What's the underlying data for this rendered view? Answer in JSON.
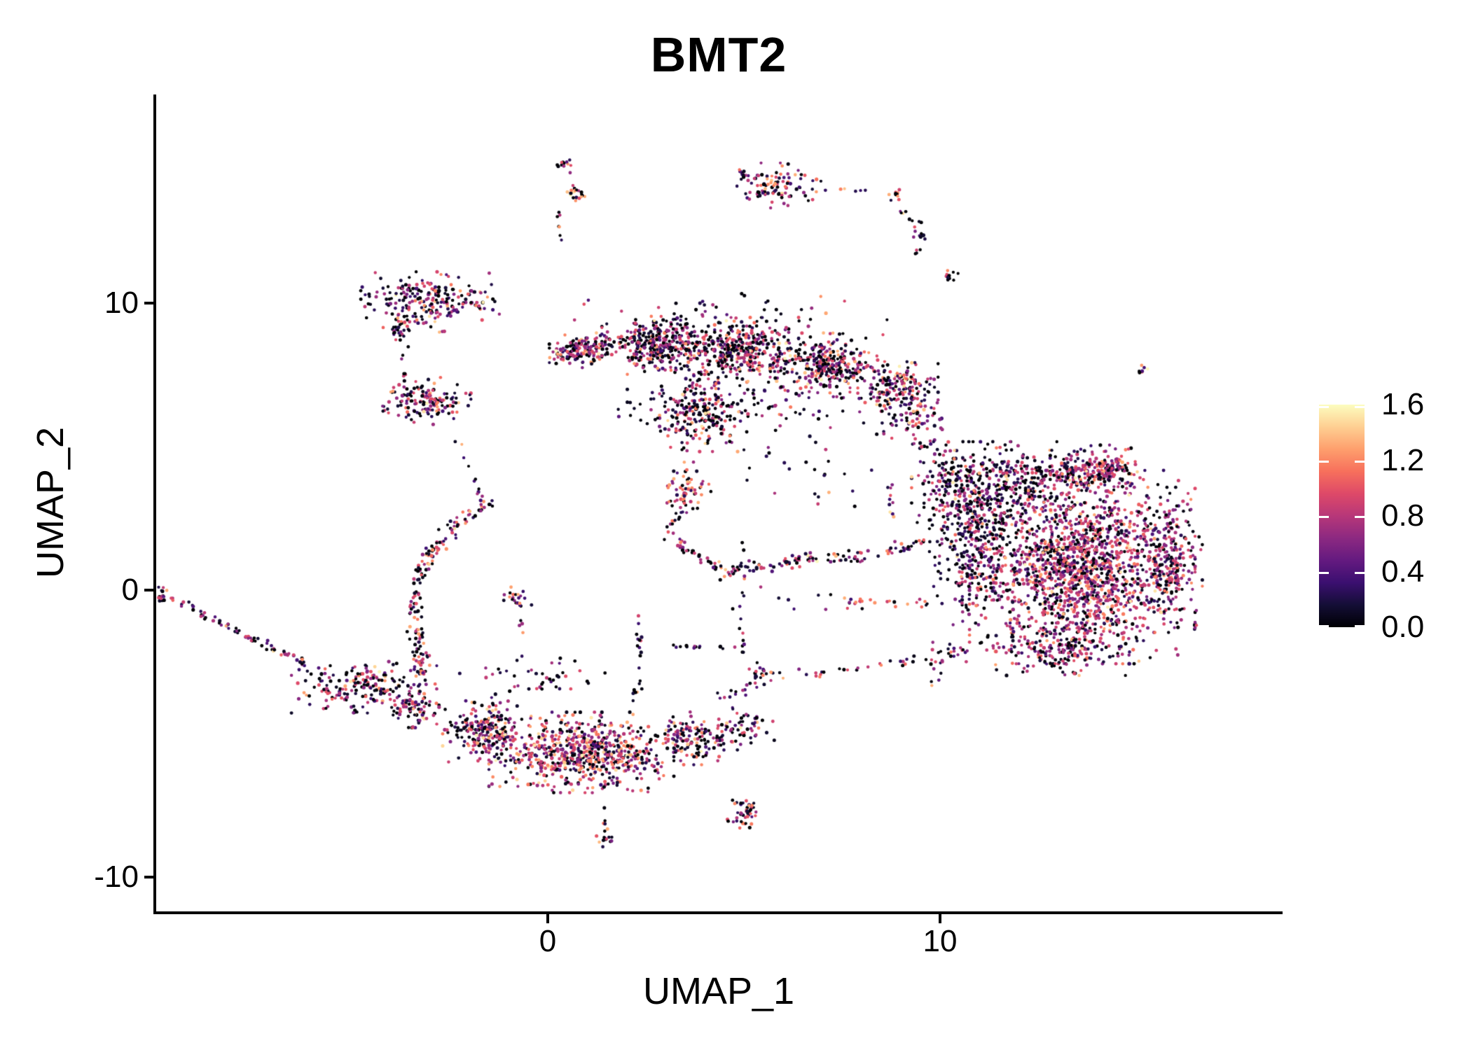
{
  "chart_data": {
    "type": "scatter",
    "title": "BMT2",
    "subtitle": "",
    "grid": false,
    "legend_position": "right",
    "x_axis": {
      "label": "UMAP_1",
      "tick_labels": [
        "0",
        "10"
      ],
      "tick_values": [
        0,
        10
      ],
      "range": [
        -9.98,
        18.7
      ]
    },
    "y_axis": {
      "label": "UMAP_2",
      "tick_labels": [
        "10",
        "0",
        "-10"
      ],
      "tick_values": [
        10,
        0,
        -10
      ],
      "range": [
        -11.2,
        17.22
      ]
    },
    "colorbar": {
      "tick_labels": [
        "1.6",
        "1.2",
        "0.8",
        "0.4",
        "0.0"
      ],
      "tick_values": [
        1.6,
        1.2,
        0.8,
        0.4,
        0.0
      ],
      "range": [
        0,
        1.6
      ],
      "colormap": "magma",
      "stops": [
        "#000004",
        "#140e36",
        "#3b0f70",
        "#641a80",
        "#8c2981",
        "#b73779",
        "#de4968",
        "#f7705c",
        "#fe9f6d",
        "#fecf92",
        "#fcfdbf"
      ]
    },
    "point_style": {
      "radius_px_min": 2.1,
      "radius_px_max": 2.6
    },
    "seed": 42,
    "default_mix": [
      0.54,
      0.32,
      0.11,
      0.03
    ],
    "value_bands": {
      "black": [
        0,
        0.45
      ],
      "purple": [
        0.55,
        1.0
      ],
      "salmon": [
        1.0,
        1.35
      ],
      "pale": [
        1.35,
        1.6
      ]
    },
    "clusters": [
      {
        "id": "chain-blob-1",
        "k": "b",
        "x": 0.45,
        "y": 14.85,
        "rx": 0.2,
        "ry": 0.27,
        "n": 12
      },
      {
        "id": "chain-blob-2",
        "k": "b",
        "x": 0.77,
        "y": 13.8,
        "rx": 0.25,
        "ry": 0.34,
        "n": 20,
        "mix": [
          0.45,
          0.35,
          0.17,
          0.03
        ]
      },
      {
        "id": "chain-pair",
        "k": "b",
        "x": 0.3,
        "y": 13.05,
        "rx": 0.09,
        "ry": 0.12,
        "n": 3
      },
      {
        "id": "chain-trail",
        "k": "s",
        "pts": [
          [
            0.32,
            12.88
          ],
          [
            0.3,
            12.2
          ]
        ],
        "w": 0.08,
        "n": 4
      },
      {
        "id": "top-cluster",
        "k": "b",
        "x": 5.95,
        "y": 14.1,
        "rx": 1.04,
        "ry": 0.68,
        "n": 95,
        "mix": [
          0.5,
          0.33,
          0.14,
          0.03
        ]
      },
      {
        "id": "top-cluster-tip",
        "k": "b",
        "x": 5.0,
        "y": 14.46,
        "rx": 0.21,
        "ry": 0.24,
        "n": 10
      },
      {
        "id": "top-trail",
        "k": "s",
        "pts": [
          [
            7.38,
            13.98
          ],
          [
            8.27,
            13.93
          ]
        ],
        "w": 0.06,
        "n": 5
      },
      {
        "id": "arch-blob-1",
        "k": "b",
        "x": 8.89,
        "y": 13.83,
        "rx": 0.21,
        "ry": 0.29,
        "n": 10,
        "mix": [
          0.45,
          0.3,
          0.2,
          0.05
        ]
      },
      {
        "id": "arch-strand-1",
        "k": "s",
        "pts": [
          [
            8.98,
            13.37
          ],
          [
            9.43,
            12.51
          ]
        ],
        "w": 0.1,
        "n": 7
      },
      {
        "id": "arch-blob-2",
        "k": "b",
        "x": 9.52,
        "y": 12.49,
        "rx": 0.23,
        "ry": 0.32,
        "n": 12,
        "mix": [
          0.45,
          0.3,
          0.2,
          0.05
        ]
      },
      {
        "id": "arch-strand-2",
        "k": "s",
        "pts": [
          [
            9.46,
            11.9
          ],
          [
            9.29,
            11.54
          ]
        ],
        "w": 0.07,
        "n": 4
      },
      {
        "id": "arch-blob-3",
        "k": "b",
        "x": 10.23,
        "y": 10.9,
        "rx": 0.21,
        "ry": 0.29,
        "n": 12
      },
      {
        "id": "tiny-isolate",
        "k": "b",
        "x": 15.2,
        "y": 7.63,
        "rx": 0.16,
        "ry": 0.22,
        "n": 7,
        "mix": [
          0.3,
          0.4,
          0.15,
          0.15
        ]
      },
      {
        "id": "hat",
        "k": "b",
        "x": -2.98,
        "y": 10.02,
        "rx": 1.52,
        "ry": 0.93,
        "n": 230,
        "mix": [
          0.5,
          0.34,
          0.13,
          0.03
        ]
      },
      {
        "id": "hat-fringe",
        "k": "b",
        "x": -3.7,
        "y": 9.1,
        "rx": 0.45,
        "ry": 0.37,
        "n": 25,
        "mix": [
          0.65,
          0.25,
          0.09,
          0.01
        ]
      },
      {
        "id": "hat-halo",
        "k": "b",
        "x": -4.5,
        "y": 10.07,
        "rx": 0.32,
        "ry": 0.61,
        "n": 10,
        "mix": [
          0.7,
          0.25,
          0.05,
          0
        ]
      },
      {
        "id": "hat-trail",
        "k": "s",
        "pts": [
          [
            -3.66,
            8.85
          ],
          [
            -3.66,
            7.39
          ]
        ],
        "w": 0.12,
        "n": 8
      },
      {
        "id": "shoe",
        "k": "b",
        "x": -3.13,
        "y": 6.59,
        "rx": 1.02,
        "ry": 0.71,
        "n": 150,
        "mix": [
          0.5,
          0.34,
          0.14,
          0.02
        ]
      },
      {
        "id": "shoe-connector",
        "k": "s",
        "pts": [
          [
            -2.45,
            5.56
          ],
          [
            -1.64,
            3.12
          ]
        ],
        "w": 0.15,
        "n": 10
      },
      {
        "id": "band-tip",
        "k": "b",
        "x": 0.32,
        "y": 8.17,
        "rx": 0.25,
        "ry": 0.24,
        "n": 18
      },
      {
        "id": "band-1",
        "k": "b",
        "x": 0.86,
        "y": 8.37,
        "rx": 0.71,
        "ry": 0.54,
        "n": 140
      },
      {
        "id": "band-2",
        "k": "b",
        "x": 2.82,
        "y": 8.56,
        "rx": 1.25,
        "ry": 0.85,
        "n": 380
      },
      {
        "id": "band-3",
        "k": "b",
        "x": 4.96,
        "y": 8.37,
        "rx": 1.25,
        "ry": 0.98,
        "n": 380
      },
      {
        "id": "band-4",
        "k": "b",
        "x": 7.11,
        "y": 7.83,
        "rx": 1.25,
        "ry": 0.98,
        "n": 320
      },
      {
        "id": "band-5",
        "k": "b",
        "x": 8.93,
        "y": 7.1,
        "rx": 0.89,
        "ry": 0.85,
        "n": 170
      },
      {
        "id": "band-top-sparse",
        "k": "b",
        "x": 4.79,
        "y": 9.71,
        "rx": 3.57,
        "ry": 0.54,
        "n": 40,
        "mix": [
          0.7,
          0.25,
          0.05,
          0
        ]
      },
      {
        "id": "band-leg",
        "k": "b",
        "x": 3.98,
        "y": 6.17,
        "rx": 0.98,
        "ry": 1.17,
        "n": 210
      },
      {
        "id": "orange-clump",
        "k": "b",
        "x": 3.54,
        "y": 3.56,
        "rx": 0.54,
        "ry": 0.78,
        "n": 65,
        "mix": [
          0.35,
          0.3,
          0.28,
          0.07
        ]
      },
      {
        "id": "band-fringe",
        "k": "b",
        "x": 5.32,
        "y": 6.54,
        "rx": 2.86,
        "ry": 0.85,
        "n": 90,
        "mix": [
          0.68,
          0.25,
          0.06,
          0.01
        ]
      },
      {
        "id": "k-blob",
        "k": "b",
        "x": 9.25,
        "y": 6.12,
        "rx": 0.8,
        "ry": 0.98,
        "n": 70,
        "mix": [
          0.6,
          0.3,
          0.09,
          0.01
        ]
      },
      {
        "id": "bridge",
        "k": "s",
        "pts": [
          [
            9.61,
            5.2
          ],
          [
            11.04,
            2.39
          ]
        ],
        "w": 0.5,
        "n": 55,
        "mix": [
          0.65,
          0.28,
          0.06,
          0.01
        ]
      },
      {
        "id": "v-strand",
        "k": "s",
        "pts": [
          [
            8.68,
            3.73
          ],
          [
            8.8,
            2.51
          ]
        ],
        "w": 0.1,
        "n": 10
      },
      {
        "id": "sparse-mid-1",
        "k": "b",
        "x": 3.18,
        "y": 5.93,
        "rx": 1.2,
        "ry": 0.9,
        "n": 30,
        "mix": [
          0.75,
          0.2,
          0.05,
          0
        ]
      },
      {
        "id": "sparse-mid-2",
        "k": "b",
        "x": 6.57,
        "y": 3.98,
        "rx": 1.8,
        "ry": 1.2,
        "n": 25,
        "mix": [
          0.75,
          0.2,
          0.05,
          0
        ]
      },
      {
        "id": "pre-arc",
        "k": "s",
        "pts": [
          [
            3.54,
            3.05
          ],
          [
            3.0,
            1.98
          ]
        ],
        "w": 0.2,
        "n": 15,
        "mix": [
          0.65,
          0.25,
          0.08,
          0.02
        ]
      },
      {
        "id": "arc",
        "k": "s",
        "pts": [
          [
            3.0,
            1.98
          ],
          [
            4.43,
            0.61
          ],
          [
            6.21,
            1.0
          ],
          [
            8.0,
            1.15
          ],
          [
            9.79,
            1.73
          ]
        ],
        "w": 0.28,
        "n": 150,
        "mix": [
          0.55,
          0.32,
          0.11,
          0.02
        ]
      },
      {
        "id": "p-core",
        "k": "b",
        "x": 13.63,
        "y": 0.8,
        "rx": 2.5,
        "ry": 2.93,
        "n": 1600,
        "mix": [
          0.32,
          0.5,
          0.15,
          0.03
        ]
      },
      {
        "id": "p-lobe",
        "k": "b",
        "x": 11.13,
        "y": 3.49,
        "rx": 1.61,
        "ry": 1.46,
        "n": 420,
        "mix": [
          0.66,
          0.27,
          0.06,
          0.01
        ]
      },
      {
        "id": "p-knob",
        "k": "b",
        "x": 14.21,
        "y": 4.27,
        "rx": 0.8,
        "ry": 0.68,
        "n": 140,
        "mix": [
          0.28,
          0.52,
          0.16,
          0.04
        ]
      },
      {
        "id": "p-right",
        "k": "b",
        "x": 15.77,
        "y": 1.05,
        "rx": 0.8,
        "ry": 2.2,
        "n": 240,
        "mix": [
          0.45,
          0.44,
          0.1,
          0.01
        ]
      },
      {
        "id": "p-bottom",
        "k": "b",
        "x": 12.82,
        "y": -2.0,
        "rx": 2.14,
        "ry": 0.85,
        "n": 200,
        "mix": [
          0.55,
          0.36,
          0.08,
          0.01
        ]
      },
      {
        "id": "p-wedge",
        "k": "b",
        "x": 10.86,
        "y": 1.17,
        "rx": 0.98,
        "ry": 2.07,
        "n": 260,
        "mix": [
          0.62,
          0.3,
          0.07,
          0.01
        ]
      },
      {
        "id": "p-top",
        "k": "b",
        "x": 13.18,
        "y": 4.17,
        "rx": 1.43,
        "ry": 0.61,
        "n": 150,
        "mix": [
          0.5,
          0.4,
          0.09,
          0.01
        ]
      },
      {
        "id": "p-sw-sparse",
        "k": "b",
        "x": 9.96,
        "y": -2.49,
        "rx": 0.54,
        "ry": 0.73,
        "n": 18,
        "mix": [
          0.7,
          0.25,
          0.05,
          0
        ]
      },
      {
        "id": "arm-1",
        "k": "s",
        "pts": [
          [
            7.64,
            -0.37
          ],
          [
            10.14,
            -0.46
          ]
        ],
        "w": 0.18,
        "n": 22,
        "mix": [
          0.5,
          0.3,
          0.18,
          0.02
        ]
      },
      {
        "id": "arm-2",
        "k": "s",
        "pts": [
          [
            5.68,
            -3.05
          ],
          [
            8.36,
            -2.66
          ],
          [
            10.68,
            -2.17
          ]
        ],
        "w": 0.2,
        "n": 34,
        "mix": [
          0.6,
          0.28,
          0.11,
          0.01
        ]
      },
      {
        "id": "arm-2-blob",
        "k": "b",
        "x": 5.41,
        "y": -2.98,
        "rx": 0.29,
        "ry": 0.39,
        "n": 24,
        "mix": [
          0.45,
          0.3,
          0.2,
          0.05
        ]
      },
      {
        "id": "strand-a",
        "k": "s",
        "pts": [
          [
            4.93,
            1.78
          ],
          [
            4.96,
            -2.61
          ]
        ],
        "w": 0.12,
        "n": 18,
        "mix": [
          0.75,
          0.2,
          0.05,
          0
        ]
      },
      {
        "id": "line-b",
        "k": "s",
        "pts": [
          [
            3.18,
            -1.93
          ],
          [
            4.79,
            -1.98
          ]
        ],
        "w": 0.08,
        "n": 14,
        "mix": [
          0.75,
          0.2,
          0.05,
          0
        ]
      },
      {
        "id": "strand-c",
        "k": "s",
        "pts": [
          [
            2.29,
            -0.71
          ],
          [
            2.36,
            -3.46
          ]
        ],
        "w": 0.09,
        "n": 16,
        "mix": [
          0.75,
          0.2,
          0.05,
          0
        ]
      },
      {
        "id": "strand-c-blob",
        "k": "b",
        "x": 2.25,
        "y": -3.63,
        "rx": 0.14,
        "ry": 0.2,
        "n": 6
      },
      {
        "id": "tail-tip",
        "k": "b",
        "x": -9.82,
        "y": -0.12,
        "rx": 0.18,
        "ry": 0.24,
        "n": 14,
        "mix": [
          0.5,
          0.35,
          0.13,
          0.02
        ]
      },
      {
        "id": "tail",
        "k": "s",
        "pts": [
          [
            -9.68,
            -0.22
          ],
          [
            -8.43,
            -1.1
          ],
          [
            -7.18,
            -1.93
          ],
          [
            -6.2,
            -2.56
          ]
        ],
        "w": 0.15,
        "n": 70,
        "mix": [
          0.55,
          0.33,
          0.1,
          0.02
        ]
      },
      {
        "id": "tail-band",
        "k": "b",
        "x": -4.68,
        "y": -3.39,
        "rx": 1.61,
        "ry": 0.78,
        "n": 190,
        "mix": [
          0.52,
          0.34,
          0.12,
          0.02
        ]
      },
      {
        "id": "arm-c",
        "k": "s",
        "pts": [
          [
            -1.46,
            3.05
          ],
          [
            -2.39,
            2.22
          ],
          [
            -3.14,
            1.0
          ],
          [
            -3.43,
            -0.32
          ],
          [
            -3.3,
            -1.68
          ],
          [
            -3.25,
            -2.9
          ]
        ],
        "w": 0.28,
        "n": 170,
        "mix": [
          0.55,
          0.32,
          0.11,
          0.02
        ]
      },
      {
        "id": "bulge",
        "k": "b",
        "x": -3.39,
        "y": -4.07,
        "rx": 0.54,
        "ry": 0.63,
        "n": 80
      },
      {
        "id": "s-left",
        "k": "b",
        "x": -1.55,
        "y": -4.93,
        "rx": 0.98,
        "ry": 0.93,
        "n": 230,
        "mix": [
          0.5,
          0.33,
          0.14,
          0.03
        ]
      },
      {
        "id": "s-core",
        "k": "b",
        "x": 0.86,
        "y": -5.66,
        "rx": 2.05,
        "ry": 1.22,
        "n": 700,
        "mix": [
          0.36,
          0.36,
          0.2,
          0.08
        ]
      },
      {
        "id": "s-right",
        "k": "b",
        "x": 3.71,
        "y": -5.17,
        "rx": 0.98,
        "ry": 0.8,
        "n": 150,
        "mix": [
          0.52,
          0.33,
          0.13,
          0.02
        ]
      },
      {
        "id": "s-right-sparse",
        "k": "b",
        "x": 4.96,
        "y": -4.8,
        "rx": 0.71,
        "ry": 0.61,
        "n": 55,
        "mix": [
          0.55,
          0.3,
          0.12,
          0.03
        ]
      },
      {
        "id": "s-above-sparse",
        "k": "b",
        "x": -0.39,
        "y": -3.22,
        "rx": 1.61,
        "ry": 0.85,
        "n": 45,
        "mix": [
          0.72,
          0.2,
          0.07,
          0.01
        ]
      },
      {
        "id": "s-connector",
        "k": "s",
        "pts": [
          [
            4.07,
            -3.83
          ],
          [
            5.14,
            -3.46
          ]
        ],
        "w": 0.25,
        "n": 10,
        "mix": [
          0.7,
          0.25,
          0.05,
          0
        ]
      },
      {
        "id": "mid-sparse",
        "k": "b",
        "x": 6.57,
        "y": -0.41,
        "rx": 1.61,
        "ry": 0.61,
        "n": 12,
        "mix": [
          0.75,
          0.2,
          0.05,
          0
        ]
      },
      {
        "id": "low-cluster",
        "k": "b",
        "x": 5.05,
        "y": -7.73,
        "rx": 0.43,
        "ry": 0.49,
        "n": 45,
        "mix": [
          0.45,
          0.35,
          0.17,
          0.03
        ]
      },
      {
        "id": "x-dot",
        "k": "b",
        "x": 1.46,
        "y": -7.56,
        "rx": 0.05,
        "ry": 0.05,
        "n": 1
      },
      {
        "id": "x-strand",
        "k": "s",
        "pts": [
          [
            1.41,
            -7.88
          ],
          [
            1.48,
            -8.37
          ]
        ],
        "w": 0.05,
        "n": 5,
        "mix": [
          0.6,
          0.2,
          0.2,
          0
        ]
      },
      {
        "id": "x-blob",
        "k": "b",
        "x": 1.5,
        "y": -8.71,
        "rx": 0.23,
        "ry": 0.34,
        "n": 14,
        "mix": [
          0.5,
          0.14,
          0.12,
          0.24
        ]
      },
      {
        "id": "t-blob",
        "k": "b",
        "x": -0.75,
        "y": -0.29,
        "rx": 0.32,
        "ry": 0.37,
        "n": 22,
        "mix": [
          0.5,
          0.3,
          0.17,
          0.03
        ]
      },
      {
        "id": "t-trail",
        "k": "s",
        "pts": [
          [
            -0.71,
            -0.71
          ],
          [
            -0.64,
            -1.51
          ]
        ],
        "w": 0.06,
        "n": 4
      }
    ]
  }
}
